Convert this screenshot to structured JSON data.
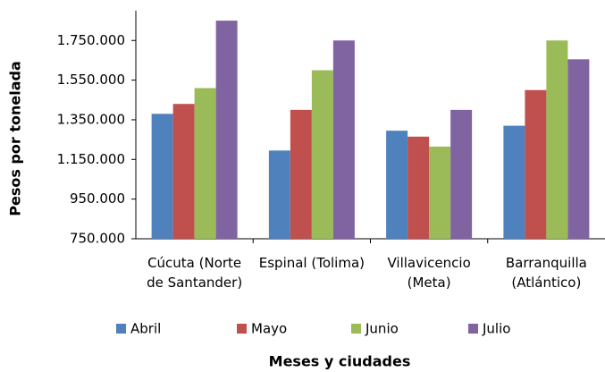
{
  "chart_data": {
    "type": "bar",
    "x_label": "Meses y ciudades",
    "y_label": "Pesos por tonelada",
    "categories": [
      "Cúcuta (Norte de Santander)",
      "Espinal (Tolima)",
      "Villavicencio (Meta)",
      "Barranquilla (Atlántico)"
    ],
    "series": [
      {
        "name": "Abril",
        "color": "#4f81bd",
        "values": [
          1380000,
          1195000,
          1295000,
          1320000
        ]
      },
      {
        "name": "Mayo",
        "color": "#c0504d",
        "values": [
          1430000,
          1400000,
          1265000,
          1500000
        ]
      },
      {
        "name": "Junio",
        "color": "#9bbb59",
        "values": [
          1510000,
          1600000,
          1215000,
          1750000
        ]
      },
      {
        "name": "Julio",
        "color": "#8064a2",
        "values": [
          1850000,
          1750000,
          1400000,
          1655000
        ]
      }
    ],
    "ylim": [
      750000,
      1900000
    ],
    "yticks": [
      {
        "value": 750000,
        "label": "750.000"
      },
      {
        "value": 950000,
        "label": "950.000"
      },
      {
        "value": 1150000,
        "label": "1.150.000"
      },
      {
        "value": 1350000,
        "label": "1.350.000"
      },
      {
        "value": 1550000,
        "label": "1.550.000"
      },
      {
        "value": 1750000,
        "label": "1.750.000"
      }
    ],
    "grid": false,
    "legend": "bottom"
  }
}
